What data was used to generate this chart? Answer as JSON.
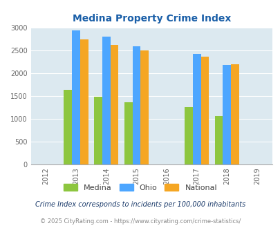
{
  "title": "Medina Property Crime Index",
  "title_color": "#1a5fa8",
  "years": [
    2013,
    2014,
    2015,
    2017,
    2018
  ],
  "x_ticks": [
    2012,
    2013,
    2014,
    2015,
    2016,
    2017,
    2018,
    2019
  ],
  "medina": [
    1630,
    1480,
    1360,
    1250,
    1050
  ],
  "ohio": [
    2930,
    2800,
    2590,
    2420,
    2170
  ],
  "national": [
    2740,
    2610,
    2500,
    2360,
    2190
  ],
  "color_medina": "#8dc63f",
  "color_ohio": "#4da6ff",
  "color_national": "#f5a623",
  "bg_color": "#dce9f0",
  "ylim": [
    0,
    3000
  ],
  "yticks": [
    0,
    500,
    1000,
    1500,
    2000,
    2500,
    3000
  ],
  "footer_note": "Crime Index corresponds to incidents per 100,000 inhabitants",
  "footer_copy": "© 2025 CityRating.com - https://www.cityrating.com/crime-statistics/",
  "legend_labels": [
    "Medina",
    "Ohio",
    "National"
  ],
  "bar_width": 0.27
}
